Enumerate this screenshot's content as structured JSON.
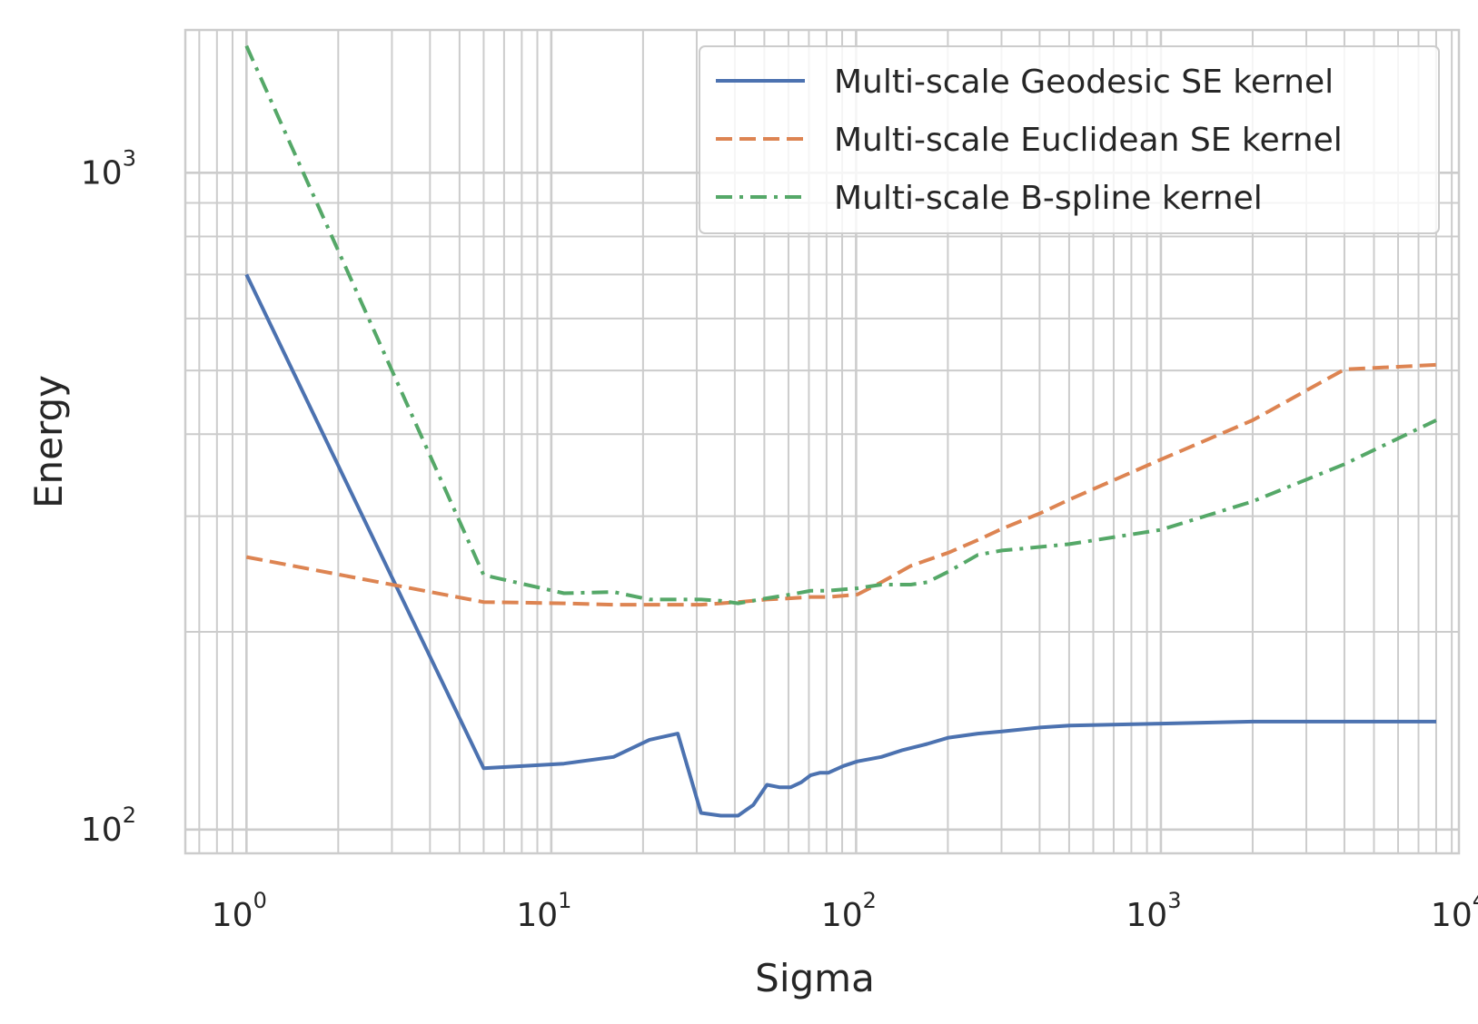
{
  "chart_data": {
    "type": "line",
    "title": "",
    "xlabel": "Sigma",
    "ylabel": "Energy",
    "xscale": "log",
    "yscale": "log",
    "xlim": [
      0.63,
      9500
    ],
    "ylim": [
      92,
      1650
    ],
    "grid": true,
    "legend_position": "top-right",
    "x_tick_labels": [
      {
        "base": "10",
        "exp": "0"
      },
      {
        "base": "10",
        "exp": "1"
      },
      {
        "base": "10",
        "exp": "2"
      },
      {
        "base": "10",
        "exp": "3"
      },
      {
        "base": "10",
        "exp": "4"
      }
    ],
    "y_tick_labels": [
      {
        "base": "10",
        "exp": "2"
      },
      {
        "base": "10",
        "exp": "3"
      }
    ],
    "series": [
      {
        "name": "Multi-scale Geodesic SE kernel",
        "color": "#4c72b0",
        "style": "solid",
        "x": [
          1,
          6,
          11,
          16,
          21,
          26,
          31,
          36,
          41,
          46,
          51,
          56,
          61,
          66,
          71,
          76,
          81,
          91,
          101,
          121,
          141,
          171,
          201,
          251,
          301,
          401,
          501,
          1001,
          2001,
          4001,
          8001
        ],
        "y": [
          700,
          124,
          126,
          129,
          137,
          140,
          106,
          105,
          105,
          109,
          117,
          116,
          116,
          118,
          121,
          122,
          122,
          125,
          127,
          129,
          132,
          135,
          138,
          140,
          141,
          143,
          144,
          145,
          146,
          146,
          146
        ]
      },
      {
        "name": "Multi-scale Euclidean SE kernel",
        "color": "#dd8452",
        "style": "dashed",
        "x": [
          1,
          6,
          11,
          16,
          21,
          26,
          31,
          36,
          41,
          51,
          61,
          71,
          81,
          101,
          121,
          151,
          201,
          251,
          301,
          401,
          501,
          1001,
          2001,
          4001,
          8001
        ],
        "y": [
          260,
          222,
          221,
          220,
          220,
          220,
          220,
          221,
          222,
          224,
          225,
          226,
          226,
          228,
          238,
          252,
          264,
          276,
          287,
          303,
          318,
          366,
          420,
          502,
          510
        ]
      },
      {
        "name": "Multi-scale B-spline kernel",
        "color": "#55a868",
        "style": "dashdot",
        "x": [
          1,
          6,
          11,
          16,
          21,
          26,
          31,
          36,
          41,
          51,
          61,
          71,
          81,
          101,
          121,
          151,
          171,
          201,
          251,
          301,
          501,
          1001,
          2001,
          4001,
          8001
        ],
        "y": [
          1560,
          244,
          229,
          230,
          224,
          224,
          224,
          223,
          221,
          225,
          228,
          231,
          231,
          233,
          236,
          236,
          238,
          247,
          262,
          266,
          272,
          286,
          316,
          360,
          420
        ]
      }
    ]
  }
}
